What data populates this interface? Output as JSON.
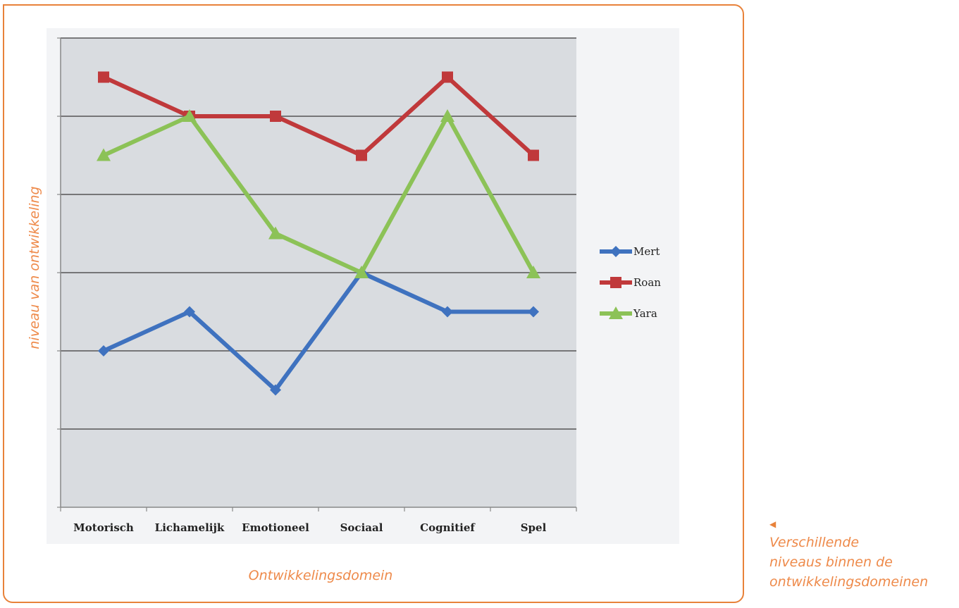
{
  "chart_data": {
    "type": "line",
    "categories": [
      "Motorisch",
      "Lichamelijk",
      "Emotioneel",
      "Sociaal",
      "Cognitief",
      "Spel"
    ],
    "series": [
      {
        "name": "Mert",
        "values": [
          2,
          2.5,
          1.5,
          3,
          2.5,
          2.5
        ],
        "color": "#3f72bf",
        "marker": "diamond"
      },
      {
        "name": "Roan",
        "values": [
          5.5,
          5,
          5,
          4.5,
          5.5,
          4.5
        ],
        "color": "#c0393b",
        "marker": "square"
      },
      {
        "name": "Yara",
        "values": [
          4.5,
          5,
          3.5,
          3,
          5,
          3
        ],
        "color": "#8cc257",
        "marker": "triangle"
      }
    ],
    "title": "",
    "xlabel": "Ontwikkelingsdomein",
    "ylabel": "niveau van ontwikkeling",
    "ylim": [
      0,
      6
    ],
    "grid": true,
    "legend": "right"
  },
  "caption": {
    "arrow_icon": "left-triangle-icon",
    "lines": [
      "Verschillende",
      "niveaus binnen de",
      "ontwikkelingsdomeinen"
    ]
  },
  "colors": {
    "frame": "#e8823a",
    "plot_background": "#d9dce0",
    "gridline": "#555555",
    "accent_text": "#ee8a4a"
  }
}
